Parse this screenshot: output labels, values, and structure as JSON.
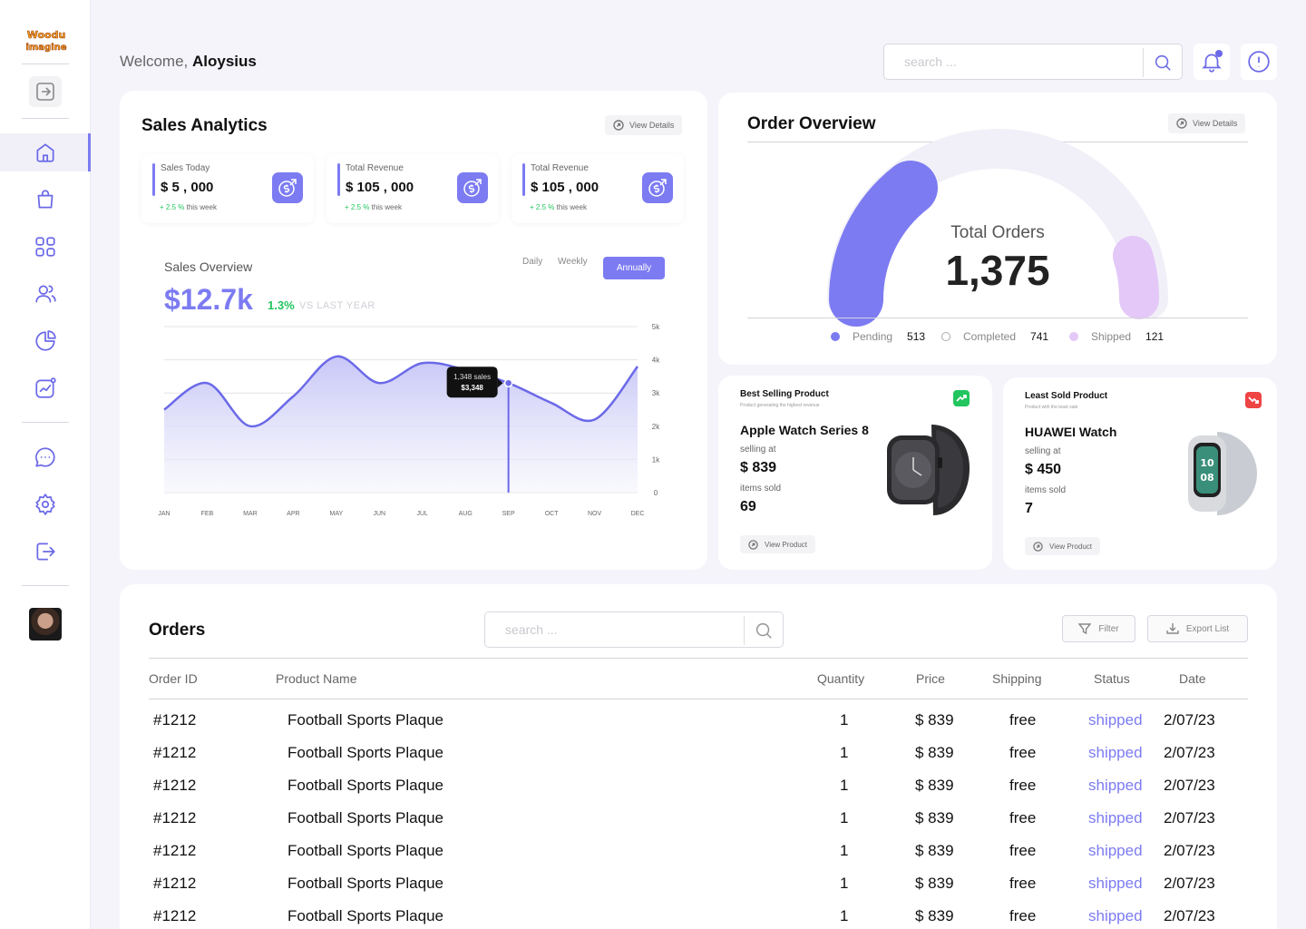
{
  "brand": {
    "logo_text": "Woodu imagine"
  },
  "header": {
    "welcome_prefix": "Welcome,",
    "user_name": "Aloysius",
    "search_placeholder": "search ..."
  },
  "sidebar": {
    "items": [
      {
        "icon": "home-icon",
        "active": true
      },
      {
        "icon": "shopping-bag-icon"
      },
      {
        "icon": "grid-icon"
      },
      {
        "icon": "users-icon"
      },
      {
        "icon": "pie-chart-icon"
      },
      {
        "icon": "trending-chart-icon"
      },
      {
        "icon": "chat-icon"
      },
      {
        "icon": "settings-icon"
      },
      {
        "icon": "logout-icon"
      }
    ]
  },
  "sales_analytics": {
    "title": "Sales Analytics",
    "view_details": "View Details",
    "stats": [
      {
        "label": "Sales Today",
        "value": "$ 5 , 000",
        "change": "+ 2.5 %",
        "change_suffix": "this week"
      },
      {
        "label": "Total Revenue",
        "value": "$ 105 , 000",
        "change": "+ 2.5 %",
        "change_suffix": "this week"
      },
      {
        "label": "Total Revenue",
        "value": "$ 105 , 000",
        "change": "+ 2.5 %",
        "change_suffix": "this week"
      }
    ],
    "overview_title": "Sales Overview",
    "overview_value": "$12.7k",
    "overview_change": "1.3%",
    "overview_vs": "VS LAST YEAR",
    "ranges": [
      "Daily",
      "Weekly",
      "Annually"
    ],
    "active_range": "Annually",
    "tooltip_sales": "1,348 sales",
    "tooltip_amount": "$3,348"
  },
  "chart_data": {
    "type": "area",
    "categories": [
      "JAN",
      "FEB",
      "MAR",
      "APR",
      "MAY",
      "JUN",
      "JUL",
      "AUG",
      "SEP",
      "OCT",
      "NOV",
      "DEC"
    ],
    "values": [
      2500,
      3300,
      2000,
      2900,
      4100,
      3300,
      3900,
      3700,
      3300,
      2700,
      2200,
      3800
    ],
    "ylim": [
      0,
      5000
    ],
    "yticks": [
      "0",
      "1k",
      "2k",
      "3k",
      "4k",
      "5k"
    ],
    "highlight_index": 8,
    "grid": true,
    "colors": {
      "line": "#6b69e8",
      "fill_top": "#c7c6f7",
      "fill_bottom": "#f4f4fc"
    }
  },
  "order_overview": {
    "title": "Order Overview",
    "view_details": "View Details",
    "total_label": "Total Orders",
    "total_value": "1,375",
    "legend": [
      {
        "label": "Pending",
        "value": "513",
        "color": "#7c7bf2"
      },
      {
        "label": "Completed",
        "value": "741",
        "color": "#f1f0f8"
      },
      {
        "label": "Shipped",
        "value": "121",
        "color": "#e3c8f8"
      }
    ]
  },
  "best_product": {
    "title": "Best Selling Product",
    "subtitle": "Product generating the highest revenue",
    "name": "Apple Watch Series 8",
    "selling_label": "selling at",
    "price": "$ 839",
    "sold_label": "items sold",
    "sold": "69",
    "button": "View Product",
    "badge_color": "#22c55e"
  },
  "least_product": {
    "title": "Least Sold Product",
    "subtitle": "Product with the least sale",
    "name": "HUAWEI Watch",
    "selling_label": "selling at",
    "price": "$ 450",
    "sold_label": "items sold",
    "sold": "7",
    "button": "View Product",
    "badge_color": "#ef4444"
  },
  "orders": {
    "title": "Orders",
    "search_placeholder": "search ...",
    "filter": "Filter",
    "export": "Export List",
    "columns": [
      "Order ID",
      "Product Name",
      "Quantity",
      "Price",
      "Shipping",
      "Status",
      "Date"
    ],
    "rows": [
      [
        "#1212",
        "Football Sports Plaque",
        "1",
        "$ 839",
        "free",
        "shipped",
        "2/07/23"
      ],
      [
        "#1212",
        "Football Sports Plaque",
        "1",
        "$ 839",
        "free",
        "shipped",
        "2/07/23"
      ],
      [
        "#1212",
        "Football Sports Plaque",
        "1",
        "$ 839",
        "free",
        "shipped",
        "2/07/23"
      ],
      [
        "#1212",
        "Football Sports Plaque",
        "1",
        "$ 839",
        "free",
        "shipped",
        "2/07/23"
      ],
      [
        "#1212",
        "Football Sports Plaque",
        "1",
        "$ 839",
        "free",
        "shipped",
        "2/07/23"
      ],
      [
        "#1212",
        "Football Sports Plaque",
        "1",
        "$ 839",
        "free",
        "shipped",
        "2/07/23"
      ],
      [
        "#1212",
        "Football Sports Plaque",
        "1",
        "$ 839",
        "free",
        "shipped",
        "2/07/23"
      ]
    ]
  }
}
